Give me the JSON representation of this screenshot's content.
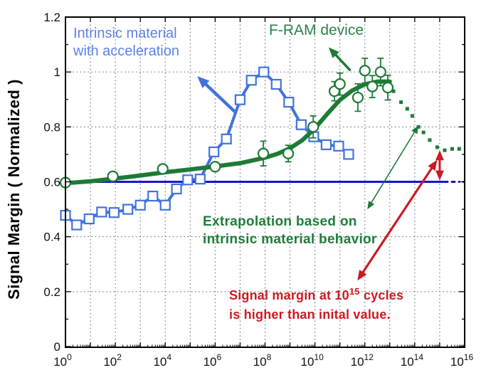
{
  "labels": {
    "blue_line1": "Intrinsic material",
    "blue_line2": "with acceleration",
    "green_series": "F-RAM device",
    "extrap_line1": "Extrapolation based on",
    "extrap_line2": "intrinsic material behavior",
    "red_line1_pre": "Signal margin at 10",
    "red_sup": "15",
    "red_line1_post": " cycles",
    "red_line2": "is higher than inital value."
  },
  "colors": {
    "blue_series": "#4273dd",
    "blue_text": "#5b82e8",
    "baseline_blue": "#1616cc",
    "green": "#1e7a35",
    "green_text": "#1f7f3d",
    "red": "#cc1a22",
    "grid": "#666666",
    "axis": "#000000",
    "tick_text": "#111111"
  },
  "chart_data": {
    "type": "line",
    "title": "",
    "xlabel": "",
    "ylabel": "Signal Margin ( Normalized )",
    "x_scale": "log10",
    "xlim_decades": [
      0,
      16
    ],
    "ylim": [
      0,
      1.2
    ],
    "x_tick_exponents": [
      0,
      2,
      4,
      6,
      8,
      10,
      12,
      14,
      16
    ],
    "x_tick_base": "10",
    "y_tick_values": [
      0,
      0.2,
      0.4,
      0.6,
      0.8,
      1.0,
      1.2
    ],
    "y_tick_labels": [
      "0",
      "0.2",
      "0.4",
      "0.6",
      "0.8",
      "1",
      "1.2"
    ],
    "grid": "dotted",
    "legend_position": "none",
    "series": [
      {
        "name": "Intrinsic material with acceleration",
        "marker": "square",
        "style": "solid",
        "color_key": "blue_series",
        "points": [
          [
            0,
            0.478
          ],
          [
            0.45,
            0.443
          ],
          [
            0.95,
            0.465
          ],
          [
            1.45,
            0.49
          ],
          [
            1.95,
            0.488
          ],
          [
            2.5,
            0.5
          ],
          [
            3.0,
            0.515
          ],
          [
            3.5,
            0.548
          ],
          [
            4.0,
            0.515
          ],
          [
            4.45,
            0.574
          ],
          [
            4.9,
            0.607
          ],
          [
            5.4,
            0.61
          ],
          [
            5.95,
            0.709
          ],
          [
            6.45,
            0.756
          ],
          [
            7.0,
            0.899
          ],
          [
            7.45,
            0.97
          ],
          [
            7.95,
            1.0
          ],
          [
            8.45,
            0.955
          ],
          [
            8.95,
            0.89
          ],
          [
            9.45,
            0.808
          ],
          [
            9.95,
            0.764
          ],
          [
            10.45,
            0.735
          ],
          [
            10.95,
            0.73
          ],
          [
            11.35,
            0.7
          ]
        ]
      },
      {
        "name": "F-RAM device",
        "marker": "circle",
        "style": "solid-thick",
        "color_key": "green",
        "trend_line": [
          [
            0,
            0.595
          ],
          [
            1,
            0.602
          ],
          [
            2,
            0.612
          ],
          [
            3,
            0.623
          ],
          [
            4,
            0.635
          ],
          [
            5,
            0.645
          ],
          [
            6,
            0.656
          ],
          [
            7,
            0.668
          ],
          [
            8,
            0.688
          ],
          [
            8.5,
            0.702
          ],
          [
            9,
            0.722
          ],
          [
            9.5,
            0.752
          ],
          [
            10,
            0.795
          ],
          [
            10.5,
            0.848
          ],
          [
            11,
            0.898
          ],
          [
            11.5,
            0.933
          ],
          [
            12,
            0.955
          ],
          [
            12.5,
            0.965
          ],
          [
            13,
            0.965
          ]
        ],
        "points_with_error": [
          [
            0,
            0.597,
            0
          ],
          [
            1.9,
            0.62,
            0
          ],
          [
            3.9,
            0.647,
            0
          ],
          [
            6.0,
            0.655,
            0
          ],
          [
            7.93,
            0.703,
            0.045
          ],
          [
            8.93,
            0.703,
            0.03
          ],
          [
            9.93,
            0.8,
            0.04
          ],
          [
            10.78,
            0.93,
            0.035
          ],
          [
            11.0,
            0.956,
            0.04
          ],
          [
            11.72,
            0.907,
            0.05
          ],
          [
            12.0,
            1.005,
            0.045
          ],
          [
            12.3,
            0.947,
            0.04
          ],
          [
            12.63,
            1.0,
            0.05
          ],
          [
            12.92,
            0.943,
            0.045
          ]
        ]
      },
      {
        "name": "Extrapolation based on intrinsic material behavior",
        "marker": "dot-square",
        "style": "dotted",
        "color_key": "green",
        "points": [
          [
            13.15,
            0.93
          ],
          [
            13.45,
            0.89
          ],
          [
            13.7,
            0.866
          ],
          [
            13.9,
            0.84
          ],
          [
            14.15,
            0.8
          ],
          [
            14.35,
            0.78
          ],
          [
            14.6,
            0.752
          ],
          [
            14.9,
            0.726
          ],
          [
            15.2,
            0.715
          ],
          [
            15.5,
            0.72
          ],
          [
            15.78,
            0.72
          ]
        ]
      },
      {
        "name": "Initial value baseline",
        "style": "solid",
        "color_key": "baseline_blue",
        "baseline_y": 0.6,
        "solid_to_decade": 15.35,
        "dash_to_decade": 16
      }
    ],
    "annotation_arrows": [
      {
        "name": "intrinsic-label-arrow",
        "color_key": "blue_series",
        "from": [
          6.85,
          0.85
        ],
        "to": [
          5.28,
          0.985
        ],
        "heads": "end",
        "width": 4.5
      },
      {
        "name": "fram-label-arrow",
        "color_key": "green",
        "from": [
          11.42,
          1.005
        ],
        "to": [
          10.55,
          1.09
        ],
        "heads": "end",
        "width": 3.5
      },
      {
        "name": "extrapolation-pointer-arrow",
        "color_key": "green",
        "from": [
          14.15,
          0.805
        ],
        "to": [
          12.1,
          0.5
        ],
        "heads": "both",
        "width": 1.6
      },
      {
        "name": "red-pointer-arrow",
        "color_key": "red",
        "from": [
          11.7,
          0.24
        ],
        "to": [
          14.9,
          0.68
        ],
        "heads": "both",
        "width": 3.2
      },
      {
        "name": "red-margin-gap-arrow",
        "color_key": "red",
        "from": [
          15.0,
          0.605
        ],
        "to": [
          15.0,
          0.715
        ],
        "heads": "both",
        "width": 3.0
      }
    ]
  }
}
